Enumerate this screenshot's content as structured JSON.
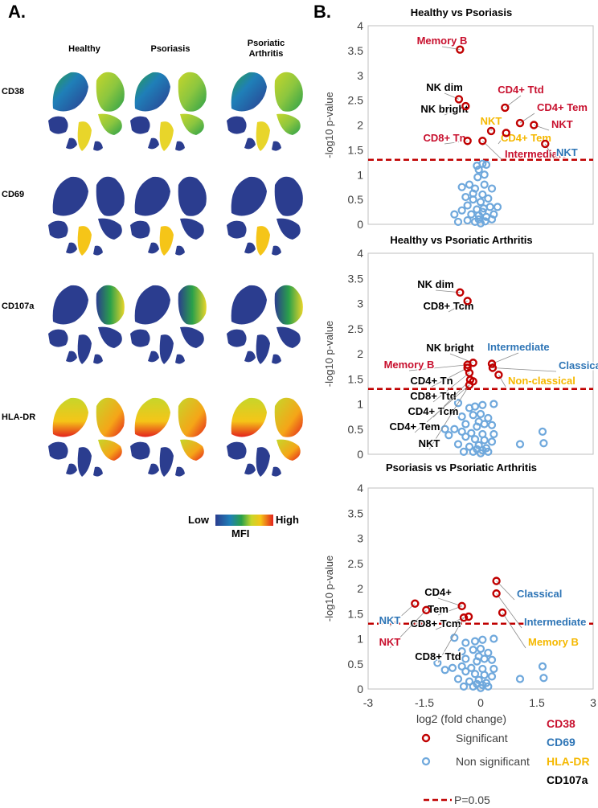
{
  "panel_a": {
    "label": "A.",
    "columns": [
      "Healthy",
      "Psoriasis",
      "Psoriatic Arthritis"
    ],
    "rows": [
      "CD38",
      "CD69",
      "CD107a",
      "HLA-DR"
    ],
    "scale": {
      "low": "Low",
      "high": "High",
      "title": "MFI"
    }
  },
  "panel_b": {
    "label": "B."
  },
  "colors": {
    "CD38": "#c8102e",
    "CD69": "#2e75b6",
    "HLA-DR": "#f5b800",
    "CD107a": "#000000",
    "significant": "#c00000",
    "nonsignificant": "#6fa8dc",
    "threshold": "#c00000"
  },
  "legend": {
    "significant": "Significant",
    "nonsignificant": "Non significant",
    "threshold": "P=0.05",
    "markers": [
      "CD38",
      "CD69",
      "HLA-DR",
      "CD107a"
    ]
  },
  "chart_data": [
    {
      "type": "scatter",
      "title": "Healthy vs Psoriasis",
      "xlabel": "log2 (fold change)",
      "ylabel": "-log10 p-value",
      "xlim": [
        -3,
        3
      ],
      "ylim": [
        0,
        4
      ],
      "yticks": [
        "0",
        "0.5",
        "1",
        "1.5",
        "2",
        "2.5",
        "3",
        "3.5",
        "4"
      ],
      "threshold": 1.3,
      "significant": [
        {
          "x": -0.55,
          "y": 3.52
        },
        {
          "x": -0.58,
          "y": 2.52
        },
        {
          "x": -0.4,
          "y": 2.38
        },
        {
          "x": 0.65,
          "y": 2.35
        },
        {
          "x": 1.05,
          "y": 2.04
        },
        {
          "x": 1.42,
          "y": 2.0
        },
        {
          "x": 0.68,
          "y": 1.84
        },
        {
          "x": 0.28,
          "y": 1.88
        },
        {
          "x": 0.05,
          "y": 1.68
        },
        {
          "x": -0.35,
          "y": 1.68
        },
        {
          "x": 1.72,
          "y": 1.62
        }
      ],
      "nonsignificant": [
        {
          "x": -0.1,
          "y": 1.18
        },
        {
          "x": 0.05,
          "y": 1.22
        },
        {
          "x": 0.15,
          "y": 1.2
        },
        {
          "x": -0.05,
          "y": 1.1
        },
        {
          "x": -0.5,
          "y": 0.75
        },
        {
          "x": -0.3,
          "y": 0.8
        },
        {
          "x": -0.15,
          "y": 0.72
        },
        {
          "x": 0.1,
          "y": 0.8
        },
        {
          "x": 0.3,
          "y": 0.72
        },
        {
          "x": -0.4,
          "y": 0.55
        },
        {
          "x": -0.2,
          "y": 0.5
        },
        {
          "x": 0.0,
          "y": 0.45
        },
        {
          "x": 0.2,
          "y": 0.52
        },
        {
          "x": -0.35,
          "y": 0.38
        },
        {
          "x": -0.1,
          "y": 0.3
        },
        {
          "x": 0.08,
          "y": 0.32
        },
        {
          "x": 0.25,
          "y": 0.35
        },
        {
          "x": 0.45,
          "y": 0.35
        },
        {
          "x": -0.5,
          "y": 0.28
        },
        {
          "x": -0.7,
          "y": 0.2
        },
        {
          "x": -0.25,
          "y": 0.2
        },
        {
          "x": -0.05,
          "y": 0.18
        },
        {
          "x": 0.15,
          "y": 0.15
        },
        {
          "x": 0.35,
          "y": 0.2
        },
        {
          "x": -0.6,
          "y": 0.05
        },
        {
          "x": -0.35,
          "y": 0.08
        },
        {
          "x": -0.15,
          "y": 0.05
        },
        {
          "x": 0.0,
          "y": 0.02
        },
        {
          "x": 0.12,
          "y": 0.06
        },
        {
          "x": 0.3,
          "y": 0.1
        },
        {
          "x": -0.05,
          "y": 0.1
        },
        {
          "x": 0.05,
          "y": 0.25
        },
        {
          "x": -0.2,
          "y": 0.62
        },
        {
          "x": 0.05,
          "y": 0.6
        },
        {
          "x": -0.08,
          "y": 0.95
        },
        {
          "x": 0.1,
          "y": 1.0
        }
      ],
      "annotations": [
        {
          "text": "Memory B",
          "marker": "CD38"
        },
        {
          "text": "NK dim",
          "marker": "CD107a"
        },
        {
          "text": "NK bright",
          "marker": "CD107a"
        },
        {
          "text": "CD4+ Ttd",
          "marker": "CD38"
        },
        {
          "text": "CD4+ Tem",
          "marker": "CD38"
        },
        {
          "text": "NKT",
          "marker": "HLA-DR"
        },
        {
          "text": "NKT",
          "marker": "CD38"
        },
        {
          "text": "CD4+ Tem",
          "marker": "HLA-DR"
        },
        {
          "text": "CD8+ Tn",
          "marker": "CD38"
        },
        {
          "text": "Intermediate",
          "marker": "CD38"
        },
        {
          "text": "NKT",
          "marker": "CD69"
        }
      ]
    },
    {
      "type": "scatter",
      "title": "Healthy vs Psoriatic Arthritis",
      "xlabel": "log2 (fold change)",
      "ylabel": "-log10 p-value",
      "xlim": [
        -3,
        3
      ],
      "ylim": [
        0,
        4
      ],
      "yticks": [
        "0",
        "0.5",
        "1",
        "1.5",
        "2",
        "2.5",
        "3",
        "3.5",
        "4"
      ],
      "threshold": 1.3,
      "significant": [
        {
          "x": -0.55,
          "y": 3.22
        },
        {
          "x": -0.35,
          "y": 3.05
        },
        {
          "x": -0.2,
          "y": 1.82
        },
        {
          "x": -0.35,
          "y": 1.78
        },
        {
          "x": -0.35,
          "y": 1.72
        },
        {
          "x": -0.3,
          "y": 1.62
        },
        {
          "x": -0.28,
          "y": 1.48
        },
        {
          "x": -0.2,
          "y": 1.45
        },
        {
          "x": -0.3,
          "y": 1.38
        },
        {
          "x": 0.3,
          "y": 1.8
        },
        {
          "x": 0.32,
          "y": 1.72
        },
        {
          "x": 0.48,
          "y": 1.58
        }
      ],
      "nonsignificant": [
        {
          "x": -0.6,
          "y": 1.02
        },
        {
          "x": -0.3,
          "y": 0.92
        },
        {
          "x": -0.15,
          "y": 0.95
        },
        {
          "x": 0.05,
          "y": 0.98
        },
        {
          "x": 0.35,
          "y": 1.0
        },
        {
          "x": -0.5,
          "y": 0.75
        },
        {
          "x": -0.2,
          "y": 0.78
        },
        {
          "x": 0.0,
          "y": 0.8
        },
        {
          "x": 0.2,
          "y": 0.72
        },
        {
          "x": -0.4,
          "y": 0.6
        },
        {
          "x": -0.1,
          "y": 0.55
        },
        {
          "x": 0.1,
          "y": 0.6
        },
        {
          "x": 0.3,
          "y": 0.58
        },
        {
          "x": -0.5,
          "y": 0.45
        },
        {
          "x": -0.7,
          "y": 0.5
        },
        {
          "x": -0.25,
          "y": 0.42
        },
        {
          "x": 0.05,
          "y": 0.4
        },
        {
          "x": 0.35,
          "y": 0.4
        },
        {
          "x": -0.85,
          "y": 0.38
        },
        {
          "x": -0.4,
          "y": 0.35
        },
        {
          "x": -0.15,
          "y": 0.3
        },
        {
          "x": 0.1,
          "y": 0.28
        },
        {
          "x": 0.3,
          "y": 0.25
        },
        {
          "x": -0.6,
          "y": 0.2
        },
        {
          "x": -0.3,
          "y": 0.15
        },
        {
          "x": -0.05,
          "y": 0.18
        },
        {
          "x": 0.15,
          "y": 0.12
        },
        {
          "x": -0.45,
          "y": 0.05
        },
        {
          "x": -0.2,
          "y": 0.05
        },
        {
          "x": 0.0,
          "y": 0.02
        },
        {
          "x": 0.2,
          "y": 0.05
        },
        {
          "x": -0.1,
          "y": 0.1
        },
        {
          "x": 0.05,
          "y": 0.08
        },
        {
          "x": 1.05,
          "y": 0.2
        },
        {
          "x": 1.65,
          "y": 0.45
        },
        {
          "x": 1.68,
          "y": 0.22
        },
        {
          "x": -0.95,
          "y": 0.5
        },
        {
          "x": -0.05,
          "y": 0.65
        }
      ],
      "annotations": [
        {
          "text": "NK dim",
          "marker": "CD107a"
        },
        {
          "text": "CD8+  Tcm",
          "marker": "CD107a"
        },
        {
          "text": "NK bright",
          "marker": "CD107a"
        },
        {
          "text": "Memory B",
          "marker": "CD38"
        },
        {
          "text": "CD4+  Tn",
          "marker": "CD107a"
        },
        {
          "text": "CD8+  Ttd",
          "marker": "CD107a"
        },
        {
          "text": "CD4+  Tcm",
          "marker": "CD107a"
        },
        {
          "text": "CD4+  Tem",
          "marker": "CD107a"
        },
        {
          "text": "NKT",
          "marker": "CD107a"
        },
        {
          "text": "Intermediate",
          "marker": "CD69"
        },
        {
          "text": "Classical",
          "marker": "CD69"
        },
        {
          "text": "Non-classical",
          "marker": "HLA-DR"
        }
      ]
    },
    {
      "type": "scatter",
      "title": "Psoriasis vs Psoriatic Arthritis",
      "xlabel": "log2 (fold change)",
      "ylabel": "-log10 p-value",
      "xlim": [
        -3,
        3
      ],
      "ylim": [
        0,
        4
      ],
      "yticks": [
        "0",
        "0.5",
        "1",
        "1.5",
        "2",
        "2.5",
        "3",
        "3.5",
        "4"
      ],
      "xticks": [
        "-3",
        "-1.5",
        "0",
        "1.5",
        "3"
      ],
      "threshold": 1.3,
      "significant": [
        {
          "x": 0.42,
          "y": 2.15
        },
        {
          "x": 0.42,
          "y": 1.9
        },
        {
          "x": 0.58,
          "y": 1.52
        },
        {
          "x": -0.5,
          "y": 1.65
        },
        {
          "x": -1.45,
          "y": 1.57
        },
        {
          "x": -0.45,
          "y": 1.42
        },
        {
          "x": -0.32,
          "y": 1.44
        },
        {
          "x": -1.75,
          "y": 1.7
        }
      ],
      "nonsignificant": [
        {
          "x": -0.7,
          "y": 1.02
        },
        {
          "x": -0.4,
          "y": 0.92
        },
        {
          "x": -0.15,
          "y": 0.95
        },
        {
          "x": 0.05,
          "y": 0.98
        },
        {
          "x": 0.35,
          "y": 1.0
        },
        {
          "x": -0.5,
          "y": 0.75
        },
        {
          "x": -0.2,
          "y": 0.78
        },
        {
          "x": 0.0,
          "y": 0.8
        },
        {
          "x": 0.2,
          "y": 0.72
        },
        {
          "x": -0.4,
          "y": 0.6
        },
        {
          "x": -0.1,
          "y": 0.55
        },
        {
          "x": 0.1,
          "y": 0.6
        },
        {
          "x": 0.3,
          "y": 0.58
        },
        {
          "x": -0.5,
          "y": 0.45
        },
        {
          "x": -0.75,
          "y": 0.42
        },
        {
          "x": -0.25,
          "y": 0.42
        },
        {
          "x": 0.05,
          "y": 0.4
        },
        {
          "x": 0.35,
          "y": 0.4
        },
        {
          "x": -0.95,
          "y": 0.38
        },
        {
          "x": -0.4,
          "y": 0.35
        },
        {
          "x": -0.15,
          "y": 0.3
        },
        {
          "x": 0.1,
          "y": 0.28
        },
        {
          "x": 0.3,
          "y": 0.25
        },
        {
          "x": -0.6,
          "y": 0.2
        },
        {
          "x": -0.3,
          "y": 0.15
        },
        {
          "x": -0.05,
          "y": 0.18
        },
        {
          "x": 0.15,
          "y": 0.12
        },
        {
          "x": -0.45,
          "y": 0.05
        },
        {
          "x": -0.2,
          "y": 0.05
        },
        {
          "x": 0.0,
          "y": 0.02
        },
        {
          "x": 0.2,
          "y": 0.05
        },
        {
          "x": -0.1,
          "y": 0.1
        },
        {
          "x": 0.05,
          "y": 0.08
        },
        {
          "x": 1.05,
          "y": 0.2
        },
        {
          "x": 1.65,
          "y": 0.45
        },
        {
          "x": 1.68,
          "y": 0.22
        },
        {
          "x": -1.15,
          "y": 0.52
        },
        {
          "x": -0.05,
          "y": 0.65
        }
      ],
      "annotations": [
        {
          "text": "CD4+",
          "marker": "CD107a"
        },
        {
          "text": "Tem",
          "marker": "CD107a"
        },
        {
          "text": "CD8+  Tcm",
          "marker": "CD107a"
        },
        {
          "text": "CD8+  Ttd",
          "marker": "CD107a"
        },
        {
          "text": "NKT",
          "marker": "CD69"
        },
        {
          "text": "NKT",
          "marker": "CD38"
        },
        {
          "text": "Classical",
          "marker": "CD69"
        },
        {
          "text": "Intermediate",
          "marker": "CD69"
        },
        {
          "text": "Memory B",
          "marker": "HLA-DR"
        }
      ]
    }
  ]
}
